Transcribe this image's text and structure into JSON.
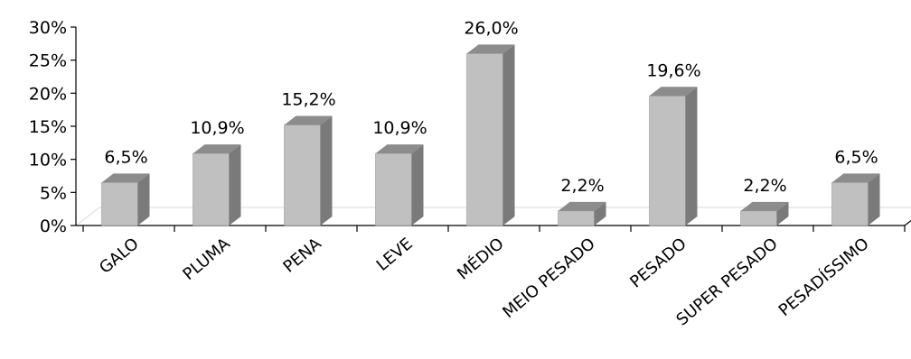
{
  "chart_data": {
    "type": "bar",
    "style": "3d-column",
    "categories": [
      "GALO",
      "PLUMA",
      "PENA",
      "LEVE",
      "MÉDIO",
      "MEIO PESADO",
      "PESADO",
      "SUPER PESADO",
      "PESADÍSSIMO"
    ],
    "values": [
      6.5,
      10.9,
      15.2,
      10.9,
      26.0,
      2.2,
      19.6,
      2.2,
      6.5
    ],
    "data_labels": [
      "6,5%",
      "10,9%",
      "15,2%",
      "10,9%",
      "26,0%",
      "2,2%",
      "19,6%",
      "2,2%",
      "6,5%"
    ],
    "ylim": [
      0,
      30
    ],
    "yticks": [
      0,
      5,
      10,
      15,
      20,
      25,
      30
    ],
    "ytick_labels": [
      "0%",
      "5%",
      "10%",
      "15%",
      "20%",
      "25%",
      "30%"
    ],
    "grid": false,
    "colors": {
      "front": "#c0c0c0",
      "top": "#8c8c8c",
      "side": "#7a7a7a",
      "floor": "#d9d9d9",
      "axis": "#000000"
    }
  }
}
